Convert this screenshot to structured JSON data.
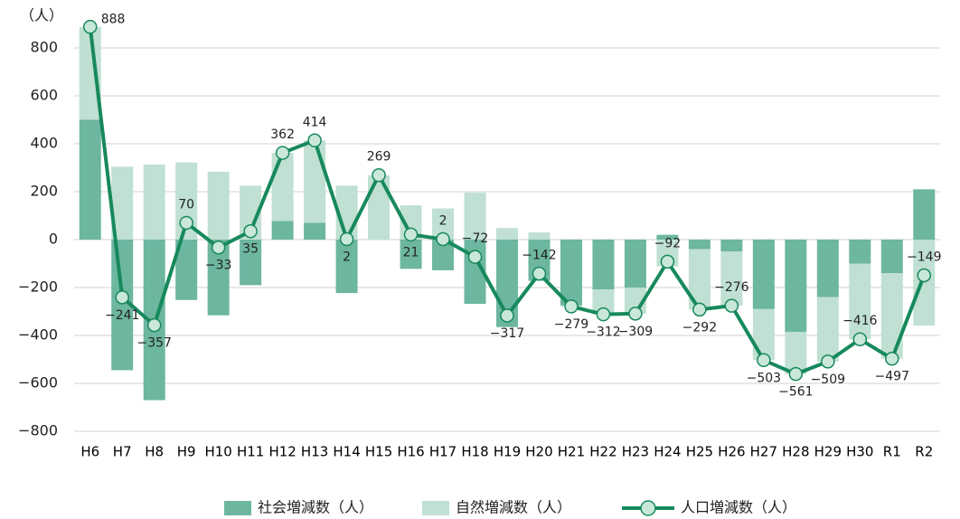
{
  "chart_data": {
    "type": "bar_line",
    "y_label": "（人）",
    "categories": [
      "H6",
      "H7",
      "H8",
      "H9",
      "H10",
      "H11",
      "H12",
      "H13",
      "H14",
      "H15",
      "H16",
      "H17",
      "H18",
      "H19",
      "H20",
      "H21",
      "H22",
      "H23",
      "H24",
      "H25",
      "H26",
      "H27",
      "H28",
      "H29",
      "H30",
      "R1",
      "R2"
    ],
    "series": [
      {
        "name": "社会増減数（人）",
        "kind": "bar",
        "color": "#6db6a0",
        "values": [
          500,
          -545,
          -670,
          -252,
          -316,
          -190,
          78,
          70,
          -223,
          0,
          -122,
          -128,
          -268,
          -365,
          -172,
          -275,
          -208,
          -200,
          20,
          -40,
          -50,
          -290,
          -385,
          -240,
          -100,
          -140,
          210
        ]
      },
      {
        "name": "自然増減数（人）",
        "kind": "bar",
        "color": "#bfe0d3",
        "values": [
          388,
          304,
          313,
          322,
          283,
          225,
          284,
          344,
          225,
          269,
          143,
          130,
          196,
          48,
          30,
          -4,
          -104,
          -109,
          -112,
          -252,
          -226,
          -213,
          -176,
          -269,
          -316,
          -357,
          -359
        ]
      },
      {
        "name": "人口増減数（人）",
        "kind": "line",
        "color": "#17895c",
        "marker_fill": "#c9e8da",
        "values": [
          888,
          -241,
          -357,
          70,
          -33,
          35,
          362,
          414,
          2,
          269,
          21,
          2,
          -72,
          -317,
          -142,
          -279,
          -312,
          -309,
          -92,
          -292,
          -276,
          -503,
          -561,
          -509,
          -416,
          -497,
          -149
        ],
        "value_labels": [
          "888",
          "−241",
          "−357",
          "70",
          "−33",
          "35",
          "362",
          "414",
          "2",
          "269",
          "21",
          "2",
          "−72",
          "−317",
          "−142",
          "−279",
          "−312",
          "−309",
          "−92",
          "−292",
          "−276",
          "−503",
          "−561",
          "−509",
          "−416",
          "−497",
          "−149"
        ]
      }
    ],
    "ylim": [
      -800,
      900
    ],
    "yticks": [
      {
        "value": -800,
        "label": "−800"
      },
      {
        "value": -600,
        "label": "−600"
      },
      {
        "value": -400,
        "label": "−400"
      },
      {
        "value": -200,
        "label": "−200"
      },
      0,
      200,
      400,
      600,
      800
    ],
    "grid": true,
    "legend": "bottom"
  }
}
